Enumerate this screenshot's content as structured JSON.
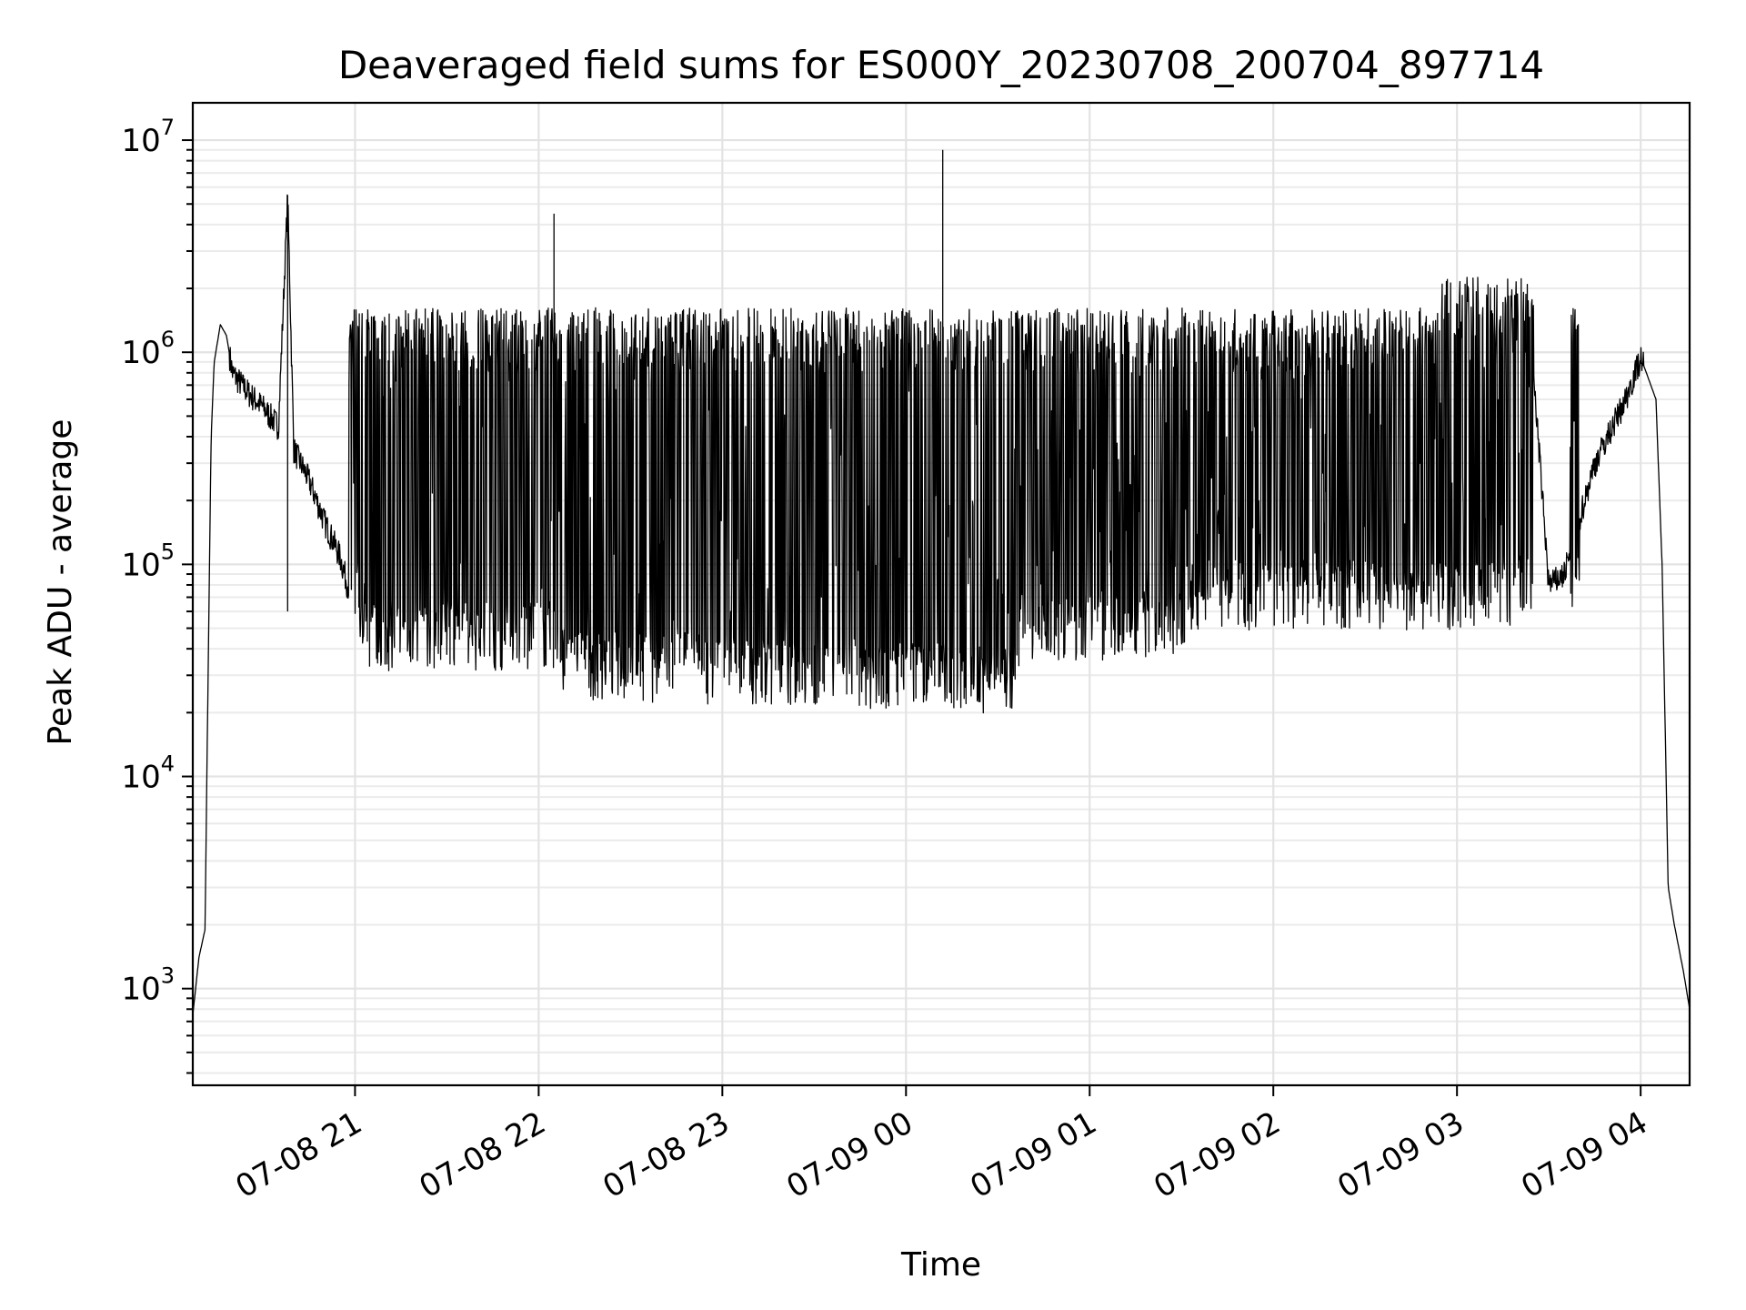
{
  "chart_data": {
    "type": "line",
    "title": "Deaveraged field sums for ES000Y_20230708_200704_897714",
    "xlabel": "Time",
    "ylabel": "Peak ADU - average",
    "yscale": "log",
    "ylim": [
      350,
      15000000
    ],
    "xlim": [
      "2023-07-08 20:07",
      "2023-07-09 04:16"
    ],
    "grid": "both",
    "x_ticks": [
      "07-08 21",
      "07-08 22",
      "07-08 23",
      "07-09 00",
      "07-09 01",
      "07-09 02",
      "07-09 03",
      "07-09 04"
    ],
    "y_ticks": [
      {
        "base": "10",
        "exp": "3",
        "value": 1000
      },
      {
        "base": "10",
        "exp": "4",
        "value": 10000
      },
      {
        "base": "10",
        "exp": "5",
        "value": 100000
      },
      {
        "base": "10",
        "exp": "6",
        "value": 1000000
      },
      {
        "base": "10",
        "exp": "7",
        "value": 10000000
      }
    ],
    "series": [
      {
        "color": "#000000",
        "points": [
          [
            "2023-07-08 20:07",
            750
          ],
          [
            "2023-07-08 20:09",
            1400
          ],
          [
            "2023-07-08 20:11",
            1900
          ],
          [
            "2023-07-08 20:12",
            30000
          ],
          [
            "2023-07-08 20:13",
            400000
          ],
          [
            "2023-07-08 20:14",
            900000
          ],
          [
            "2023-07-08 20:16",
            1350000
          ],
          [
            "2023-07-08 20:18",
            1200000
          ],
          [
            "2023-07-08 20:20",
            800000
          ],
          [
            "2023-07-08 20:25",
            650000
          ],
          [
            "2023-07-08 20:30",
            550000
          ],
          [
            "2023-07-08 20:35",
            450000
          ],
          [
            "2023-07-08 20:38",
            5500000
          ],
          [
            "2023-07-08 20:40",
            350000
          ],
          [
            "2023-07-08 20:45",
            250000
          ],
          [
            "2023-07-08 20:50",
            160000
          ],
          [
            "2023-07-08 20:55",
            110000
          ],
          [
            "2023-07-08 21:00",
            60000
          ],
          [
            "2023-07-08 21:15",
            1300000
          ],
          [
            "2023-07-08 21:30",
            50000
          ],
          [
            "2023-07-08 21:45",
            1000000
          ],
          [
            "2023-07-08 22:00",
            45000
          ],
          [
            "2023-07-08 22:05",
            4500000
          ],
          [
            "2023-07-08 22:15",
            40000
          ],
          [
            "2023-07-08 22:30",
            300000
          ],
          [
            "2023-07-08 22:45",
            35000
          ],
          [
            "2023-07-08 23:00",
            38000
          ],
          [
            "2023-07-08 23:15",
            1350000
          ],
          [
            "2023-07-08 23:30",
            30000
          ],
          [
            "2023-07-08 23:45",
            1400000
          ],
          [
            "2023-07-09 00:00",
            45000
          ],
          [
            "2023-07-09 00:12",
            9000000
          ],
          [
            "2023-07-09 00:15",
            50000
          ],
          [
            "2023-07-09 00:30",
            1500000
          ],
          [
            "2023-07-09 00:45",
            60000
          ],
          [
            "2023-07-09 01:00",
            120000
          ],
          [
            "2023-07-09 01:15",
            1200000
          ],
          [
            "2023-07-09 01:30",
            80000
          ],
          [
            "2023-07-09 01:45",
            1000000
          ],
          [
            "2023-07-09 02:00",
            65000
          ],
          [
            "2023-07-09 02:15",
            900000
          ],
          [
            "2023-07-09 02:30",
            70000
          ],
          [
            "2023-07-09 02:45",
            700000
          ],
          [
            "2023-07-09 03:00",
            1200000
          ],
          [
            "2023-07-09 03:05",
            2400000
          ],
          [
            "2023-07-09 03:15",
            1500000
          ],
          [
            "2023-07-09 03:25",
            800000
          ],
          [
            "2023-07-09 03:30",
            80000
          ],
          [
            "2023-07-09 03:35",
            90000
          ],
          [
            "2023-07-09 03:45",
            300000
          ],
          [
            "2023-07-09 03:55",
            600000
          ],
          [
            "2023-07-09 04:00",
            950000
          ],
          [
            "2023-07-09 04:05",
            600000
          ],
          [
            "2023-07-09 04:07",
            100000
          ],
          [
            "2023-07-09 04:09",
            3000
          ],
          [
            "2023-07-09 04:11",
            2000
          ],
          [
            "2023-07-09 04:14",
            1200
          ],
          [
            "2023-07-09 04:16",
            800
          ]
        ]
      }
    ]
  }
}
